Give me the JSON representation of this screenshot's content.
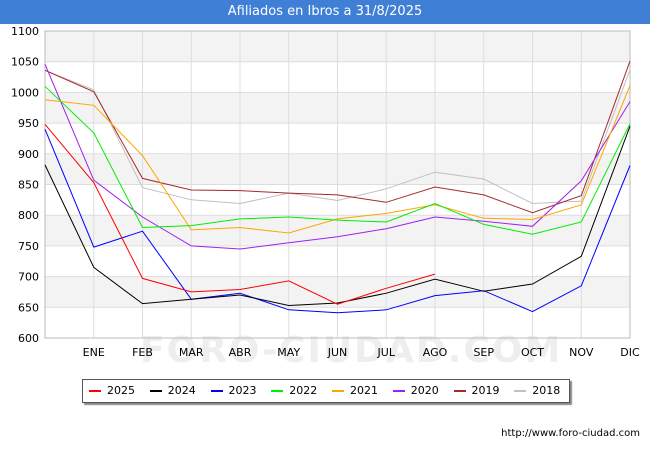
{
  "title": "Afiliados en Ibros a 31/8/2025",
  "source": "http://www.foro-ciudad.com",
  "watermark": "FORO-CIUDAD.COM",
  "chart_data": {
    "type": "line",
    "categories": [
      "",
      "ENE",
      "FEB",
      "MAR",
      "ABR",
      "MAY",
      "JUN",
      "JUL",
      "AGO",
      "SEP",
      "OCT",
      "NOV",
      "DIC"
    ],
    "ylim": [
      600,
      1100
    ],
    "yticks": [
      600,
      650,
      700,
      750,
      800,
      850,
      900,
      950,
      1000,
      1050,
      1100
    ],
    "grid": true,
    "legend_position": "bottom",
    "series": [
      {
        "name": "2025",
        "color": "#ff0000",
        "values": [
          948,
          853,
          697,
          675,
          679,
          693,
          655,
          681,
          704,
          null,
          null,
          null,
          null
        ]
      },
      {
        "name": "2024",
        "color": "#000000",
        "values": [
          882,
          715,
          656,
          663,
          670,
          653,
          657,
          673,
          696,
          676,
          688,
          733,
          945
        ]
      },
      {
        "name": "2023",
        "color": "#0000ff",
        "values": [
          940,
          748,
          774,
          663,
          673,
          646,
          641,
          646,
          669,
          677,
          643,
          685,
          881
        ]
      },
      {
        "name": "2022",
        "color": "#00ee00",
        "values": [
          1010,
          934,
          780,
          783,
          794,
          797,
          792,
          789,
          819,
          785,
          769,
          789,
          949
        ]
      },
      {
        "name": "2021",
        "color": "#ffa500",
        "values": [
          988,
          979,
          897,
          776,
          780,
          771,
          794,
          803,
          817,
          795,
          793,
          817,
          1011
        ]
      },
      {
        "name": "2020",
        "color": "#a020f0",
        "values": [
          1046,
          857,
          797,
          750,
          745,
          755,
          765,
          778,
          797,
          790,
          782,
          856,
          985
        ]
      },
      {
        "name": "2019",
        "color": "#a52a2a",
        "values": [
          1036,
          1001,
          860,
          841,
          840,
          836,
          833,
          821,
          846,
          833,
          804,
          832,
          1051
        ]
      },
      {
        "name": "2018",
        "color": "#c0c0c0",
        "values": [
          1036,
          1004,
          845,
          825,
          819,
          836,
          824,
          843,
          870,
          859,
          819,
          823,
          1037
        ]
      }
    ]
  }
}
